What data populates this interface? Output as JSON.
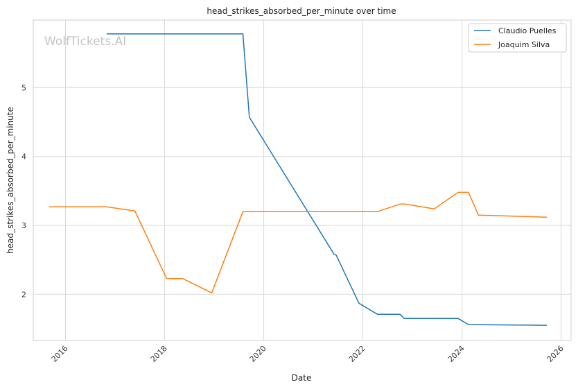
{
  "watermark": "WolfTickets.AI",
  "chart_data": {
    "type": "line",
    "title": "head_strikes_absorbed_per_minute over time",
    "xlabel": "Date",
    "ylabel": "head_strikes_absorbed_per_minute",
    "x_ticks": [
      "2016",
      "2018",
      "2020",
      "2022",
      "2024",
      "2026"
    ],
    "y_ticks": [
      "2",
      "3",
      "4",
      "5"
    ],
    "xlim": [
      2015.35,
      2026.2
    ],
    "ylim": [
      1.33,
      5.98
    ],
    "grid": true,
    "legend": "top-right",
    "series": [
      {
        "name": "Claudio Puelles",
        "color": "#1f77b4",
        "points": [
          [
            2016.83,
            5.78
          ],
          [
            2019.58,
            5.78
          ],
          [
            2019.71,
            4.57
          ],
          [
            2021.42,
            2.58
          ],
          [
            2021.46,
            2.57
          ],
          [
            2021.92,
            1.87
          ],
          [
            2022.29,
            1.71
          ],
          [
            2022.75,
            1.71
          ],
          [
            2022.83,
            1.65
          ],
          [
            2023.92,
            1.65
          ],
          [
            2024.13,
            1.56
          ],
          [
            2025.71,
            1.55
          ]
        ]
      },
      {
        "name": "Joaquim Silva",
        "color": "#ff7f0e",
        "points": [
          [
            2015.67,
            3.27
          ],
          [
            2016.83,
            3.27
          ],
          [
            2017.4,
            3.21
          ],
          [
            2018.04,
            2.23
          ],
          [
            2018.36,
            2.23
          ],
          [
            2018.95,
            2.02
          ],
          [
            2019.58,
            3.2
          ],
          [
            2021.42,
            3.2
          ],
          [
            2021.5,
            3.2
          ],
          [
            2022.29,
            3.2
          ],
          [
            2022.75,
            3.31
          ],
          [
            2022.85,
            3.31
          ],
          [
            2023.44,
            3.24
          ],
          [
            2023.92,
            3.48
          ],
          [
            2024.13,
            3.48
          ],
          [
            2024.33,
            3.15
          ],
          [
            2025.71,
            3.12
          ]
        ]
      }
    ]
  }
}
